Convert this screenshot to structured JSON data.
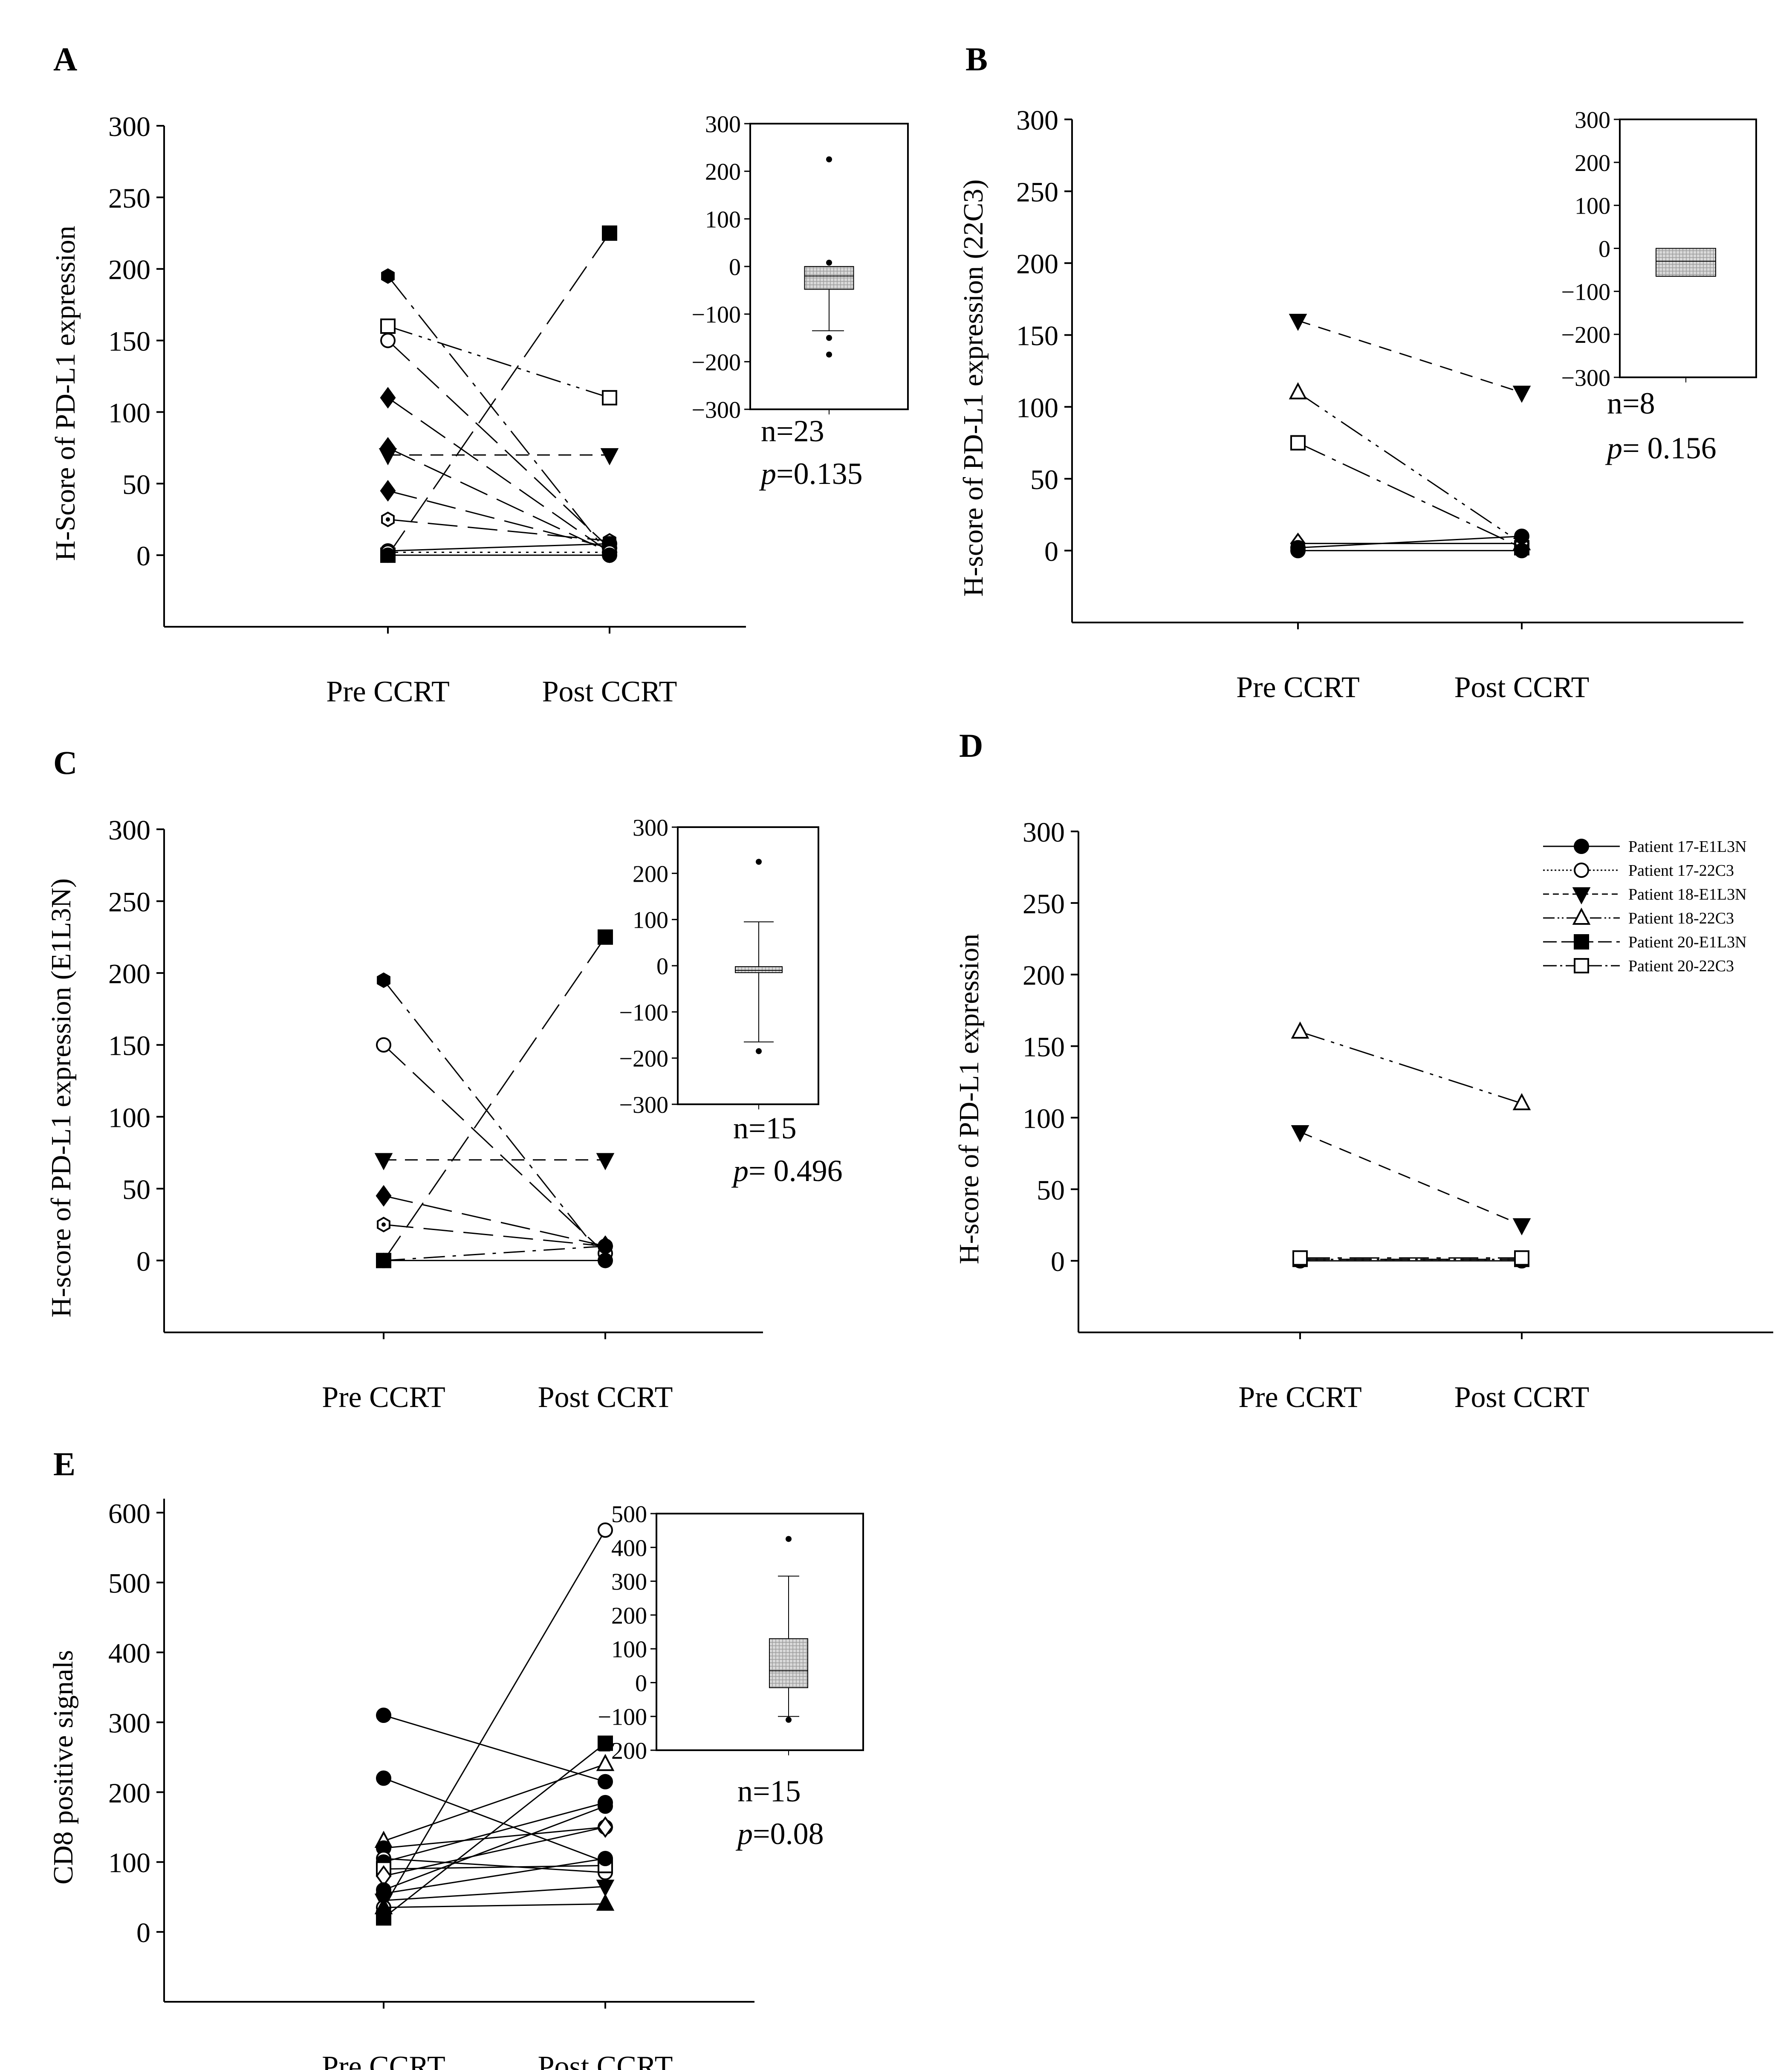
{
  "figure": {
    "panels": [
      "A",
      "B",
      "C",
      "D",
      "E"
    ]
  },
  "chart_data": [
    {
      "id": "A",
      "type": "line",
      "title": "",
      "panel_label": "A",
      "xlabel": "",
      "ylabel": "H-Score of PD-L1 expression",
      "categories": [
        "Pre CCRT",
        "Post CCRT"
      ],
      "ylim": [
        -50,
        300
      ],
      "yticks": [
        0,
        50,
        100,
        150,
        200,
        250,
        300
      ],
      "series": [
        {
          "name": "s1",
          "marker": "hexfill",
          "dash": "longdashdot",
          "values": [
            195,
            0
          ]
        },
        {
          "name": "s2",
          "marker": "circle-open",
          "dash": "longdash",
          "values": [
            150,
            5
          ]
        },
        {
          "name": "s3",
          "marker": "square-open",
          "dash": "dashdotdot",
          "values": [
            160,
            110
          ]
        },
        {
          "name": "s4",
          "marker": "diamond",
          "dash": "longdash",
          "values": [
            110,
            2
          ]
        },
        {
          "name": "s5",
          "marker": "diamond",
          "dash": "longdash",
          "values": [
            75,
            2
          ]
        },
        {
          "name": "s6",
          "marker": "triangle-down",
          "dash": "shortdash",
          "values": [
            70,
            70
          ]
        },
        {
          "name": "s7",
          "marker": "diamond",
          "dash": "longdash",
          "values": [
            45,
            5
          ]
        },
        {
          "name": "s8",
          "marker": "hexopen",
          "dash": "longdash",
          "values": [
            25,
            10
          ]
        },
        {
          "name": "s9",
          "marker": "square",
          "dash": "longdash",
          "values": [
            0,
            225
          ]
        },
        {
          "name": "s10",
          "marker": "circle",
          "dash": "solid",
          "values": [
            3,
            8
          ]
        },
        {
          "name": "s11",
          "marker": "circle-open",
          "dash": "dotted",
          "values": [
            2,
            2
          ]
        },
        {
          "name": "s12",
          "marker": "circle",
          "dash": "solid",
          "values": [
            0,
            0
          ]
        }
      ],
      "inset": {
        "type": "box",
        "ylim": [
          -300,
          300
        ],
        "yticks": [
          300,
          200,
          100,
          0,
          -100,
          -200,
          -300
        ],
        "q1": -48,
        "median": -20,
        "q3": 0,
        "whisker_low": -135,
        "whisker_high": 0,
        "outliers": [
          225,
          8,
          -150,
          -185
        ],
        "n_label": "n=23",
        "p_label": "p=0.135"
      }
    },
    {
      "id": "B",
      "type": "line",
      "title": "",
      "panel_label": "B",
      "xlabel": "",
      "ylabel": "H-score of PD-L1 expression (22C3)",
      "categories": [
        "Pre CCRT",
        "Post CCRT"
      ],
      "ylim": [
        -50,
        300
      ],
      "yticks": [
        0,
        50,
        100,
        150,
        200,
        250,
        300
      ],
      "series": [
        {
          "name": "s1",
          "marker": "triangle-down",
          "dash": "shortdash",
          "values": [
            160,
            110
          ]
        },
        {
          "name": "s2",
          "marker": "triangle-open",
          "dash": "dashdotdot",
          "values": [
            110,
            5
          ]
        },
        {
          "name": "s3",
          "marker": "square-open",
          "dash": "longdashdot",
          "values": [
            75,
            2
          ]
        },
        {
          "name": "s4",
          "marker": "diamond-open",
          "dash": "solid",
          "values": [
            5,
            5
          ]
        },
        {
          "name": "s5",
          "marker": "circle",
          "dash": "solid",
          "values": [
            2,
            10
          ]
        },
        {
          "name": "s6",
          "marker": "circle",
          "dash": "solid",
          "values": [
            0,
            0
          ]
        }
      ],
      "inset": {
        "type": "box",
        "ylim": [
          -300,
          300
        ],
        "yticks": [
          300,
          200,
          100,
          0,
          -100,
          -200,
          -300
        ],
        "q1": -65,
        "median": -30,
        "q3": 0,
        "whisker_low": -65,
        "whisker_high": 0,
        "outliers": [],
        "n_label": "n=8",
        "p_label": "p= 0.156"
      }
    },
    {
      "id": "C",
      "type": "line",
      "title": "",
      "panel_label": "C",
      "xlabel": "",
      "ylabel": "H-score of PD-L1 expression (E1L3N)",
      "categories": [
        "Pre CCRT",
        "Post CCRT"
      ],
      "ylim": [
        -50,
        300
      ],
      "yticks": [
        0,
        50,
        100,
        150,
        200,
        250,
        300
      ],
      "series": [
        {
          "name": "s1",
          "marker": "hexfill",
          "dash": "longdashdot",
          "values": [
            195,
            0
          ]
        },
        {
          "name": "s2",
          "marker": "circle-open",
          "dash": "longdash",
          "values": [
            150,
            5
          ]
        },
        {
          "name": "s3",
          "marker": "triangle-down",
          "dash": "shortdash",
          "values": [
            70,
            70
          ]
        },
        {
          "name": "s4",
          "marker": "diamond",
          "dash": "longdash",
          "values": [
            45,
            10
          ]
        },
        {
          "name": "s5",
          "marker": "hexopen",
          "dash": "longdash",
          "values": [
            25,
            10
          ]
        },
        {
          "name": "s6",
          "marker": "square",
          "dash": "longdash",
          "values": [
            0,
            225
          ]
        },
        {
          "name": "s7",
          "marker": "circle",
          "dash": "dashdot",
          "values": [
            0,
            10
          ]
        },
        {
          "name": "s8",
          "marker": "circle",
          "dash": "solid",
          "values": [
            0,
            0
          ]
        }
      ],
      "inset": {
        "type": "box",
        "ylim": [
          -300,
          300
        ],
        "yticks": [
          300,
          200,
          100,
          0,
          -100,
          -200,
          -300
        ],
        "q1": -15,
        "median": -10,
        "q3": -2,
        "whisker_low": -165,
        "whisker_high": 95,
        "outliers": [
          225,
          -185
        ],
        "n_label": "n=15",
        "p_label": "p= 0.496"
      }
    },
    {
      "id": "D",
      "type": "line",
      "title": "",
      "panel_label": "D",
      "xlabel": "",
      "ylabel": "H-score of PD-L1 expression",
      "categories": [
        "Pre CCRT",
        "Post CCRT"
      ],
      "ylim": [
        -50,
        300
      ],
      "yticks": [
        0,
        50,
        100,
        150,
        200,
        250,
        300
      ],
      "series": [
        {
          "name": "Patient 17-E1L3N",
          "marker": "circle",
          "dash": "solid",
          "values": [
            0,
            0
          ]
        },
        {
          "name": "Patient 17-22C3",
          "marker": "circle-open",
          "dash": "dotted",
          "values": [
            1,
            1
          ]
        },
        {
          "name": "Patient 18-E1L3N",
          "marker": "triangle-down",
          "dash": "shortdash",
          "values": [
            90,
            25
          ]
        },
        {
          "name": "Patient 18-22C3",
          "marker": "triangle-open",
          "dash": "dashdotdot",
          "values": [
            160,
            110
          ]
        },
        {
          "name": "Patient 20-E1L3N",
          "marker": "square",
          "dash": "longdash",
          "values": [
            1,
            1
          ]
        },
        {
          "name": "Patient 20-22C3",
          "marker": "square-open",
          "dash": "longdashdot",
          "values": [
            2,
            2
          ]
        }
      ],
      "legend_position": "top-right"
    },
    {
      "id": "E",
      "type": "line",
      "title": "",
      "panel_label": "E",
      "xlabel": "",
      "ylabel": "CD8 positive signals",
      "categories": [
        "Pre CCRT",
        "Post CCRT"
      ],
      "ylim": [
        -100,
        620
      ],
      "yticks": [
        0,
        100,
        200,
        300,
        400,
        500,
        600
      ],
      "series": [
        {
          "name": "s1",
          "marker": "circle",
          "dash": "solid",
          "values": [
            310,
            215
          ]
        },
        {
          "name": "s2",
          "marker": "circle",
          "dash": "solid",
          "values": [
            220,
            100
          ]
        },
        {
          "name": "s3",
          "marker": "triangle-open",
          "dash": "solid",
          "values": [
            130,
            240
          ]
        },
        {
          "name": "s4",
          "marker": "circle",
          "dash": "solid",
          "values": [
            120,
            150
          ]
        },
        {
          "name": "s5",
          "marker": "circle-open",
          "dash": "solid",
          "values": [
            105,
            85
          ]
        },
        {
          "name": "s6",
          "marker": "circle",
          "dash": "solid",
          "values": [
            100,
            185
          ]
        },
        {
          "name": "s7",
          "marker": "square-open",
          "dash": "solid",
          "values": [
            90,
            95
          ]
        },
        {
          "name": "s8",
          "marker": "diamond-open",
          "dash": "solid",
          "values": [
            80,
            150
          ]
        },
        {
          "name": "s9",
          "marker": "circle",
          "dash": "solid",
          "values": [
            60,
            180
          ]
        },
        {
          "name": "s10",
          "marker": "circle",
          "dash": "solid",
          "values": [
            55,
            105
          ]
        },
        {
          "name": "s11",
          "marker": "triangle-down",
          "dash": "solid",
          "values": [
            45,
            65
          ]
        },
        {
          "name": "s12",
          "marker": "circle-open",
          "dash": "solid",
          "values": [
            35,
            575
          ]
        },
        {
          "name": "s13",
          "marker": "triangle-up",
          "dash": "solid",
          "values": [
            35,
            40
          ]
        },
        {
          "name": "s14",
          "marker": "square",
          "dash": "solid",
          "values": [
            20,
            270
          ]
        }
      ],
      "inset": {
        "type": "box",
        "ylim": [
          -200,
          500
        ],
        "yticks": [
          500,
          400,
          300,
          200,
          100,
          0,
          -100,
          -200
        ],
        "q1": -15,
        "median": 35,
        "q3": 130,
        "whisker_low": -100,
        "whisker_high": 315,
        "outliers": [
          425,
          -110
        ],
        "n_label": "n=15",
        "p_label": "p=0.08"
      }
    }
  ]
}
